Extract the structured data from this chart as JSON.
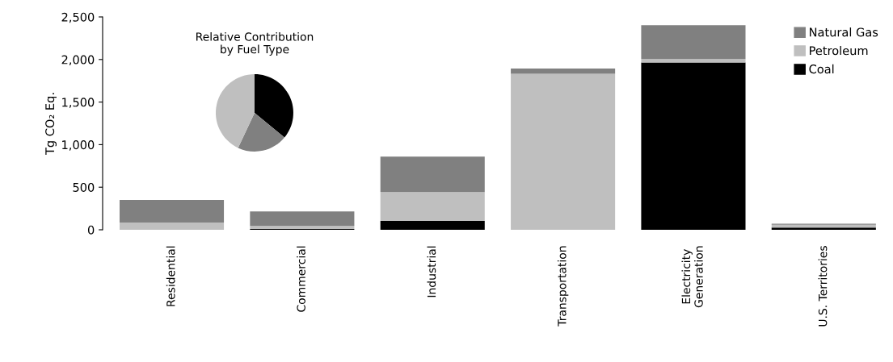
{
  "chart_data": [
    {
      "type": "bar",
      "stacked": true,
      "ylabel": "Tg CO₂ Eq.",
      "categories": [
        "Residential",
        "Commercial",
        "Industrial",
        "Transportation",
        "Electricity\nGeneration",
        "U.S. Territories"
      ],
      "series": [
        {
          "name": "Coal",
          "color": "#000000",
          "values": [
            0,
            10,
            105,
            0,
            1965,
            25
          ]
        },
        {
          "name": "Petroleum",
          "color": "#bfbfbf",
          "values": [
            85,
            35,
            338,
            1833,
            40,
            35
          ]
        },
        {
          "name": "Natural Gas",
          "color": "#808080",
          "values": [
            265,
            170,
            417,
            60,
            397,
            10
          ]
        }
      ],
      "ylim": [
        0,
        2500
      ],
      "yticks": [
        0,
        {
          "value": 500,
          "label": "500"
        },
        {
          "value": 1000,
          "label": "1,000"
        },
        {
          "value": 1500,
          "label": "1,500"
        },
        {
          "value": 2000,
          "label": "2,000"
        },
        {
          "value": 2500,
          "label": "2,500"
        }
      ],
      "grid": false,
      "legend": "top right"
    },
    {
      "type": "pie",
      "title": "Relative Contribution\nby Fuel Type",
      "categories": [
        null,
        null,
        null
      ],
      "values": [
        36,
        21,
        43
      ],
      "colors": [
        "#000000",
        "#808080",
        "#bfbfbf"
      ]
    }
  ]
}
